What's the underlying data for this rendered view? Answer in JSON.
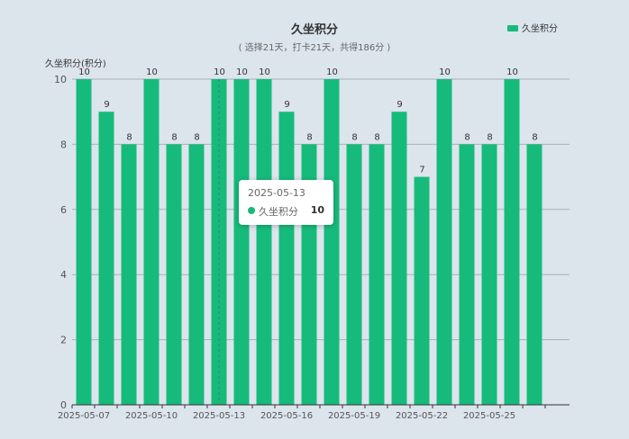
{
  "colors": {
    "bar": "#16bb7b",
    "axis": "#333333",
    "grid": "#a8b0b8",
    "pointer": "#4a7a6a"
  },
  "chart_data": {
    "type": "bar",
    "title": "久坐积分",
    "subtitle": "( 选择21天，打卡21天，共得186分 )",
    "ylabel": "久坐积分(积分)",
    "xlabel": "",
    "ylim": [
      0,
      10
    ],
    "yticks": [
      0,
      2,
      4,
      6,
      8,
      10
    ],
    "grid": true,
    "legend": {
      "position": "top-right",
      "entries": [
        "久坐积分"
      ]
    },
    "categories": [
      "2025-05-07",
      "2025-05-08",
      "2025-05-09",
      "2025-05-10",
      "2025-05-11",
      "2025-05-12",
      "2025-05-13",
      "2025-05-14",
      "2025-05-15",
      "2025-05-16",
      "2025-05-17",
      "2025-05-18",
      "2025-05-19",
      "2025-05-20",
      "2025-05-21",
      "2025-05-22",
      "2025-05-23",
      "2025-05-24",
      "2025-05-25",
      "2025-05-26",
      "2025-05-27"
    ],
    "xtick_labels": [
      "2025-05-07",
      "2025-05-10",
      "2025-05-13",
      "2025-05-16",
      "2025-05-19",
      "2025-05-22",
      "2025-05-25"
    ],
    "series": [
      {
        "name": "久坐积分",
        "values": [
          10,
          9,
          8,
          10,
          8,
          8,
          10,
          10,
          10,
          9,
          8,
          10,
          8,
          8,
          9,
          7,
          10,
          8,
          8,
          10,
          8
        ]
      }
    ]
  },
  "tooltip": {
    "date": "2025-05-13",
    "series_name": "久坐积分",
    "value": "10"
  }
}
